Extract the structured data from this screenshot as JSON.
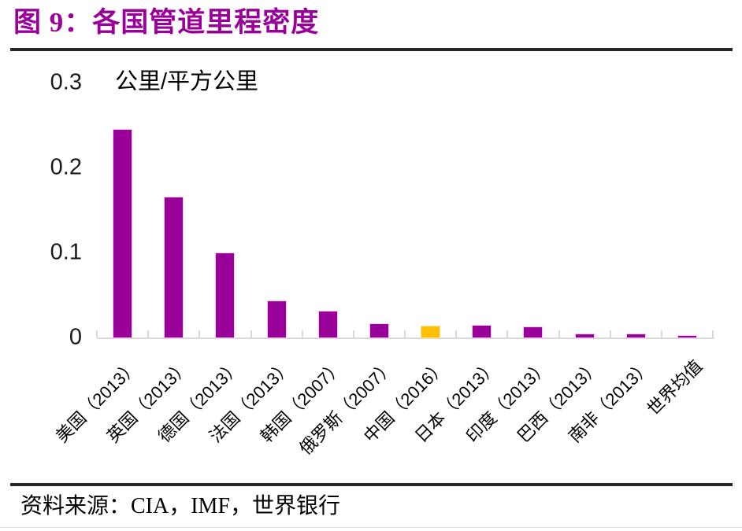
{
  "header": {
    "title": "图 9：各国管道里程密度",
    "title_color": "#990099",
    "rule_color": "#262626"
  },
  "chart_data": {
    "type": "bar",
    "title": "图 9：各国管道里程密度",
    "unit_label": "公里/平方公里",
    "ylabel": "公里/平方公里",
    "xlabel": "",
    "categories": [
      "美国（2013）",
      "英国（2013）",
      "德国（2013）",
      "法国（2013）",
      "韩国（2007）",
      "俄罗斯（2007）",
      "中国（2016）",
      "日本（2013）",
      "印度（2013）",
      "巴西（2013）",
      "南非（2013）",
      "世界均值"
    ],
    "values": [
      0.244,
      0.165,
      0.099,
      0.043,
      0.031,
      0.016,
      0.013,
      0.014,
      0.012,
      0.004,
      0.004,
      0.002
    ],
    "ylim": [
      0,
      0.3
    ],
    "yticks": [
      {
        "label": "0.3",
        "value": 0.3
      },
      {
        "label": "0.2",
        "value": 0.2
      },
      {
        "label": "0.1",
        "value": 0.1
      },
      {
        "label": "0",
        "value": 0
      }
    ],
    "grid": false,
    "legend": "none",
    "bar_color": "#990099",
    "bar_edge_color": "#EFC9ED",
    "highlight_index": 6,
    "highlight_color": "#FFC000",
    "highlight_edge_color": "#FFE39B",
    "axis_color": "#D9D9D9",
    "tick_label_color": "#1A1A1A",
    "category_label_color": "#000000"
  },
  "footer": {
    "source": "资料来源：CIA，IMF，世界银行",
    "rule_color": "#262626",
    "hairline_color": "#DDDDDD"
  }
}
